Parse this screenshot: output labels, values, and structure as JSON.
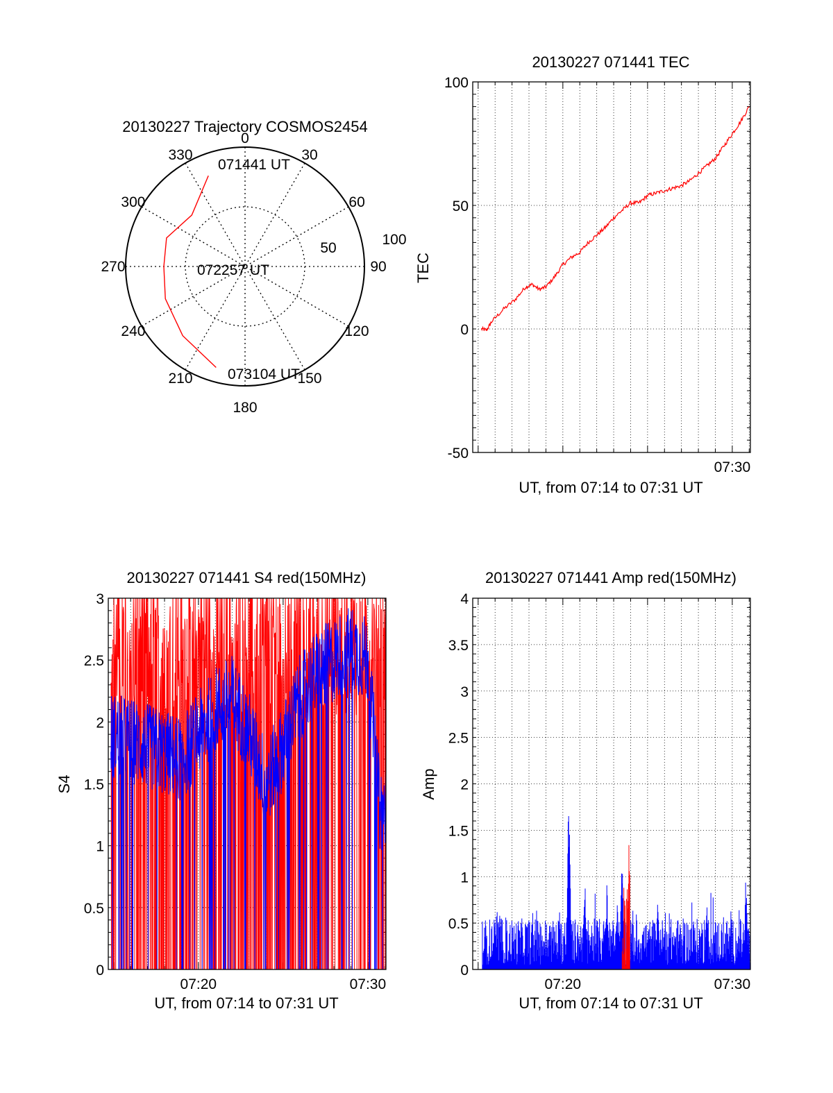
{
  "colors": {
    "red": "#ff0000",
    "blue": "#0000ff",
    "axis": "#000000"
  },
  "chart_data": [
    {
      "type": "polar",
      "title": "20130227 Trajectory COSMOS2454",
      "angle_labels": [
        "0",
        "30",
        "60",
        "90",
        "120",
        "150",
        "180",
        "210",
        "240",
        "270",
        "300",
        "330"
      ],
      "radial_labels": [
        "50",
        "100"
      ],
      "rlim": [
        0,
        100
      ],
      "series": [
        {
          "color": "#ff0000",
          "points": [
            {
              "az": 338,
              "r": 82
            },
            {
              "az": 314,
              "r": 62
            },
            {
              "az": 290,
              "r": 70
            },
            {
              "az": 270,
              "r": 68
            },
            {
              "az": 248,
              "r": 72
            },
            {
              "az": 222,
              "r": 78
            },
            {
              "az": 196,
              "r": 88
            }
          ]
        }
      ],
      "annotations": [
        {
          "text": "071441 UT",
          "az": 338,
          "r": 82
        },
        {
          "text": "072257 UT",
          "az": 0,
          "r": 0
        },
        {
          "text": "073104 UT",
          "az": 196,
          "r": 88
        }
      ]
    },
    {
      "type": "line",
      "title": "20130227 071441 TEC",
      "xlabel": "UT, from 07:14 to 07:31 UT",
      "ylabel": "TEC",
      "xlim": [
        434.68,
        451.07
      ],
      "ylim": [
        -50,
        100
      ],
      "yticks": [
        "100",
        "50",
        "0",
        "-50"
      ],
      "xticks": [
        {
          "t": 450,
          "label": "07:30"
        }
      ],
      "grid": true,
      "series": [
        {
          "color": "#ff0000",
          "points": [
            [
              435.2,
              0
            ],
            [
              435.5,
              -0.5
            ],
            [
              435.8,
              3
            ],
            [
              436.5,
              8
            ],
            [
              437.2,
              12
            ],
            [
              437.8,
              17
            ],
            [
              438.2,
              18
            ],
            [
              438.6,
              16
            ],
            [
              439.0,
              17
            ],
            [
              439.5,
              21
            ],
            [
              440.0,
              26
            ],
            [
              440.5,
              29
            ],
            [
              441.0,
              31
            ],
            [
              441.5,
              35
            ],
            [
              442.0,
              38
            ],
            [
              442.5,
              41
            ],
            [
              443.0,
              45
            ],
            [
              443.5,
              48
            ],
            [
              444.0,
              51
            ],
            [
              444.5,
              51
            ],
            [
              445.0,
              54
            ],
            [
              445.5,
              55
            ],
            [
              446.0,
              56
            ],
            [
              446.5,
              57
            ],
            [
              447.0,
              58
            ],
            [
              447.5,
              60
            ],
            [
              448.0,
              63
            ],
            [
              448.5,
              66
            ],
            [
              449.0,
              69
            ],
            [
              449.5,
              74
            ],
            [
              450.0,
              79
            ],
            [
              450.5,
              84
            ],
            [
              451.0,
              90
            ]
          ]
        }
      ]
    },
    {
      "type": "line",
      "title": "20130227 071441 S4 red(150MHz)",
      "xlabel": "UT, from 07:14 to 07:31 UT",
      "ylabel": "S4",
      "xlim": [
        434.68,
        451.07
      ],
      "ylim": [
        0,
        3
      ],
      "yticks": [
        "3",
        "2.5",
        "2",
        "1.5",
        "1",
        "0.5",
        "0"
      ],
      "xticks": [
        {
          "t": 440,
          "label": "07:20"
        },
        {
          "t": 450,
          "label": "07:30"
        }
      ],
      "grid": true,
      "series": [
        {
          "name": "",
          "color": "#ff0000",
          "style": "noisy",
          "base": 2.4,
          "spread": 0.6,
          "dropout": 0.35
        },
        {
          "name": "",
          "color": "#0000ff",
          "style": "noisy",
          "profile": [
            [
              434.7,
              1.9
            ],
            [
              436,
              1.85
            ],
            [
              437,
              1.8
            ],
            [
              438,
              1.75
            ],
            [
              439,
              1.7
            ],
            [
              440,
              1.9
            ],
            [
              441,
              2.1
            ],
            [
              442,
              2.2
            ],
            [
              443,
              1.9
            ],
            [
              444,
              1.5
            ],
            [
              445,
              1.8
            ],
            [
              446,
              2.2
            ],
            [
              447,
              2.4
            ],
            [
              448,
              2.5
            ],
            [
              449,
              2.6
            ],
            [
              450,
              2.5
            ],
            [
              450.7,
              1.3
            ],
            [
              451.07,
              1.3
            ]
          ],
          "spread": 0.35,
          "dropout": 0.08
        }
      ]
    },
    {
      "type": "line",
      "title": "20130227 071441 Amp red(150MHz)",
      "xlabel": "UT, from 07:14 to 07:31 UT",
      "ylabel": "Amp",
      "xlim": [
        434.68,
        451.07
      ],
      "ylim": [
        0,
        4
      ],
      "yticks": [
        "4",
        "3.5",
        "3",
        "2.5",
        "2",
        "1.5",
        "1",
        "0.5",
        "0"
      ],
      "xticks": [
        {
          "t": 440,
          "label": "07:20"
        },
        {
          "t": 450,
          "label": "07:30"
        }
      ],
      "grid": true,
      "series": [
        {
          "name": "",
          "color": "#0000ff",
          "style": "spiky",
          "start": 435.25,
          "base": 0.3,
          "spread": 0.25,
          "spikes": [
            {
              "t": 440.35,
              "v": 2.08
            },
            {
              "t": 441.3,
              "v": 0.97
            },
            {
              "t": 442.6,
              "v": 1.05
            },
            {
              "t": 443.2,
              "v": 0.8
            },
            {
              "t": 443.5,
              "v": 1.3
            },
            {
              "t": 445.6,
              "v": 0.75
            },
            {
              "t": 448.5,
              "v": 0.75
            },
            {
              "t": 450.8,
              "v": 1.0
            }
          ]
        },
        {
          "name": "",
          "color": "#ff0000",
          "style": "spiky",
          "start": 443.5,
          "end": 443.95,
          "base": 0.4,
          "spread": 0.5,
          "spikes": [
            {
              "t": 443.9,
              "v": 1.45
            }
          ]
        }
      ]
    }
  ]
}
